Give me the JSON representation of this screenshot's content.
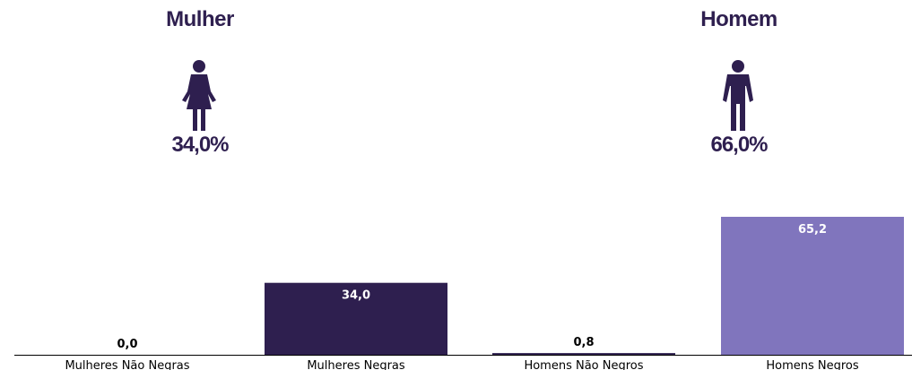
{
  "colors": {
    "title": "#2e1f4f",
    "dark_purple": "#2e1f4f",
    "light_purple": "#8075bd",
    "axis": "#000000"
  },
  "summary": {
    "female": {
      "title": "Mulher",
      "icon": "female-person-icon",
      "percent_label": "34,0%"
    },
    "male": {
      "title": "Homem",
      "icon": "male-person-icon",
      "percent_label": "66,0%"
    }
  },
  "chart_data": {
    "type": "bar",
    "categories": [
      "Mulheres Não Negras",
      "Mulheres Negras",
      "Homens Não Negros",
      "Homens Negros"
    ],
    "values": [
      0.0,
      34.0,
      0.8,
      65.2
    ],
    "value_labels": [
      "0,0",
      "34,0",
      "0,8",
      "65,2"
    ],
    "bar_colors": [
      "#2e1f4f",
      "#2e1f4f",
      "#2e1f4f",
      "#8075bd"
    ],
    "title": "",
    "xlabel": "",
    "ylabel": "",
    "ylim": [
      0,
      70
    ],
    "grid": false,
    "legend": "none"
  }
}
